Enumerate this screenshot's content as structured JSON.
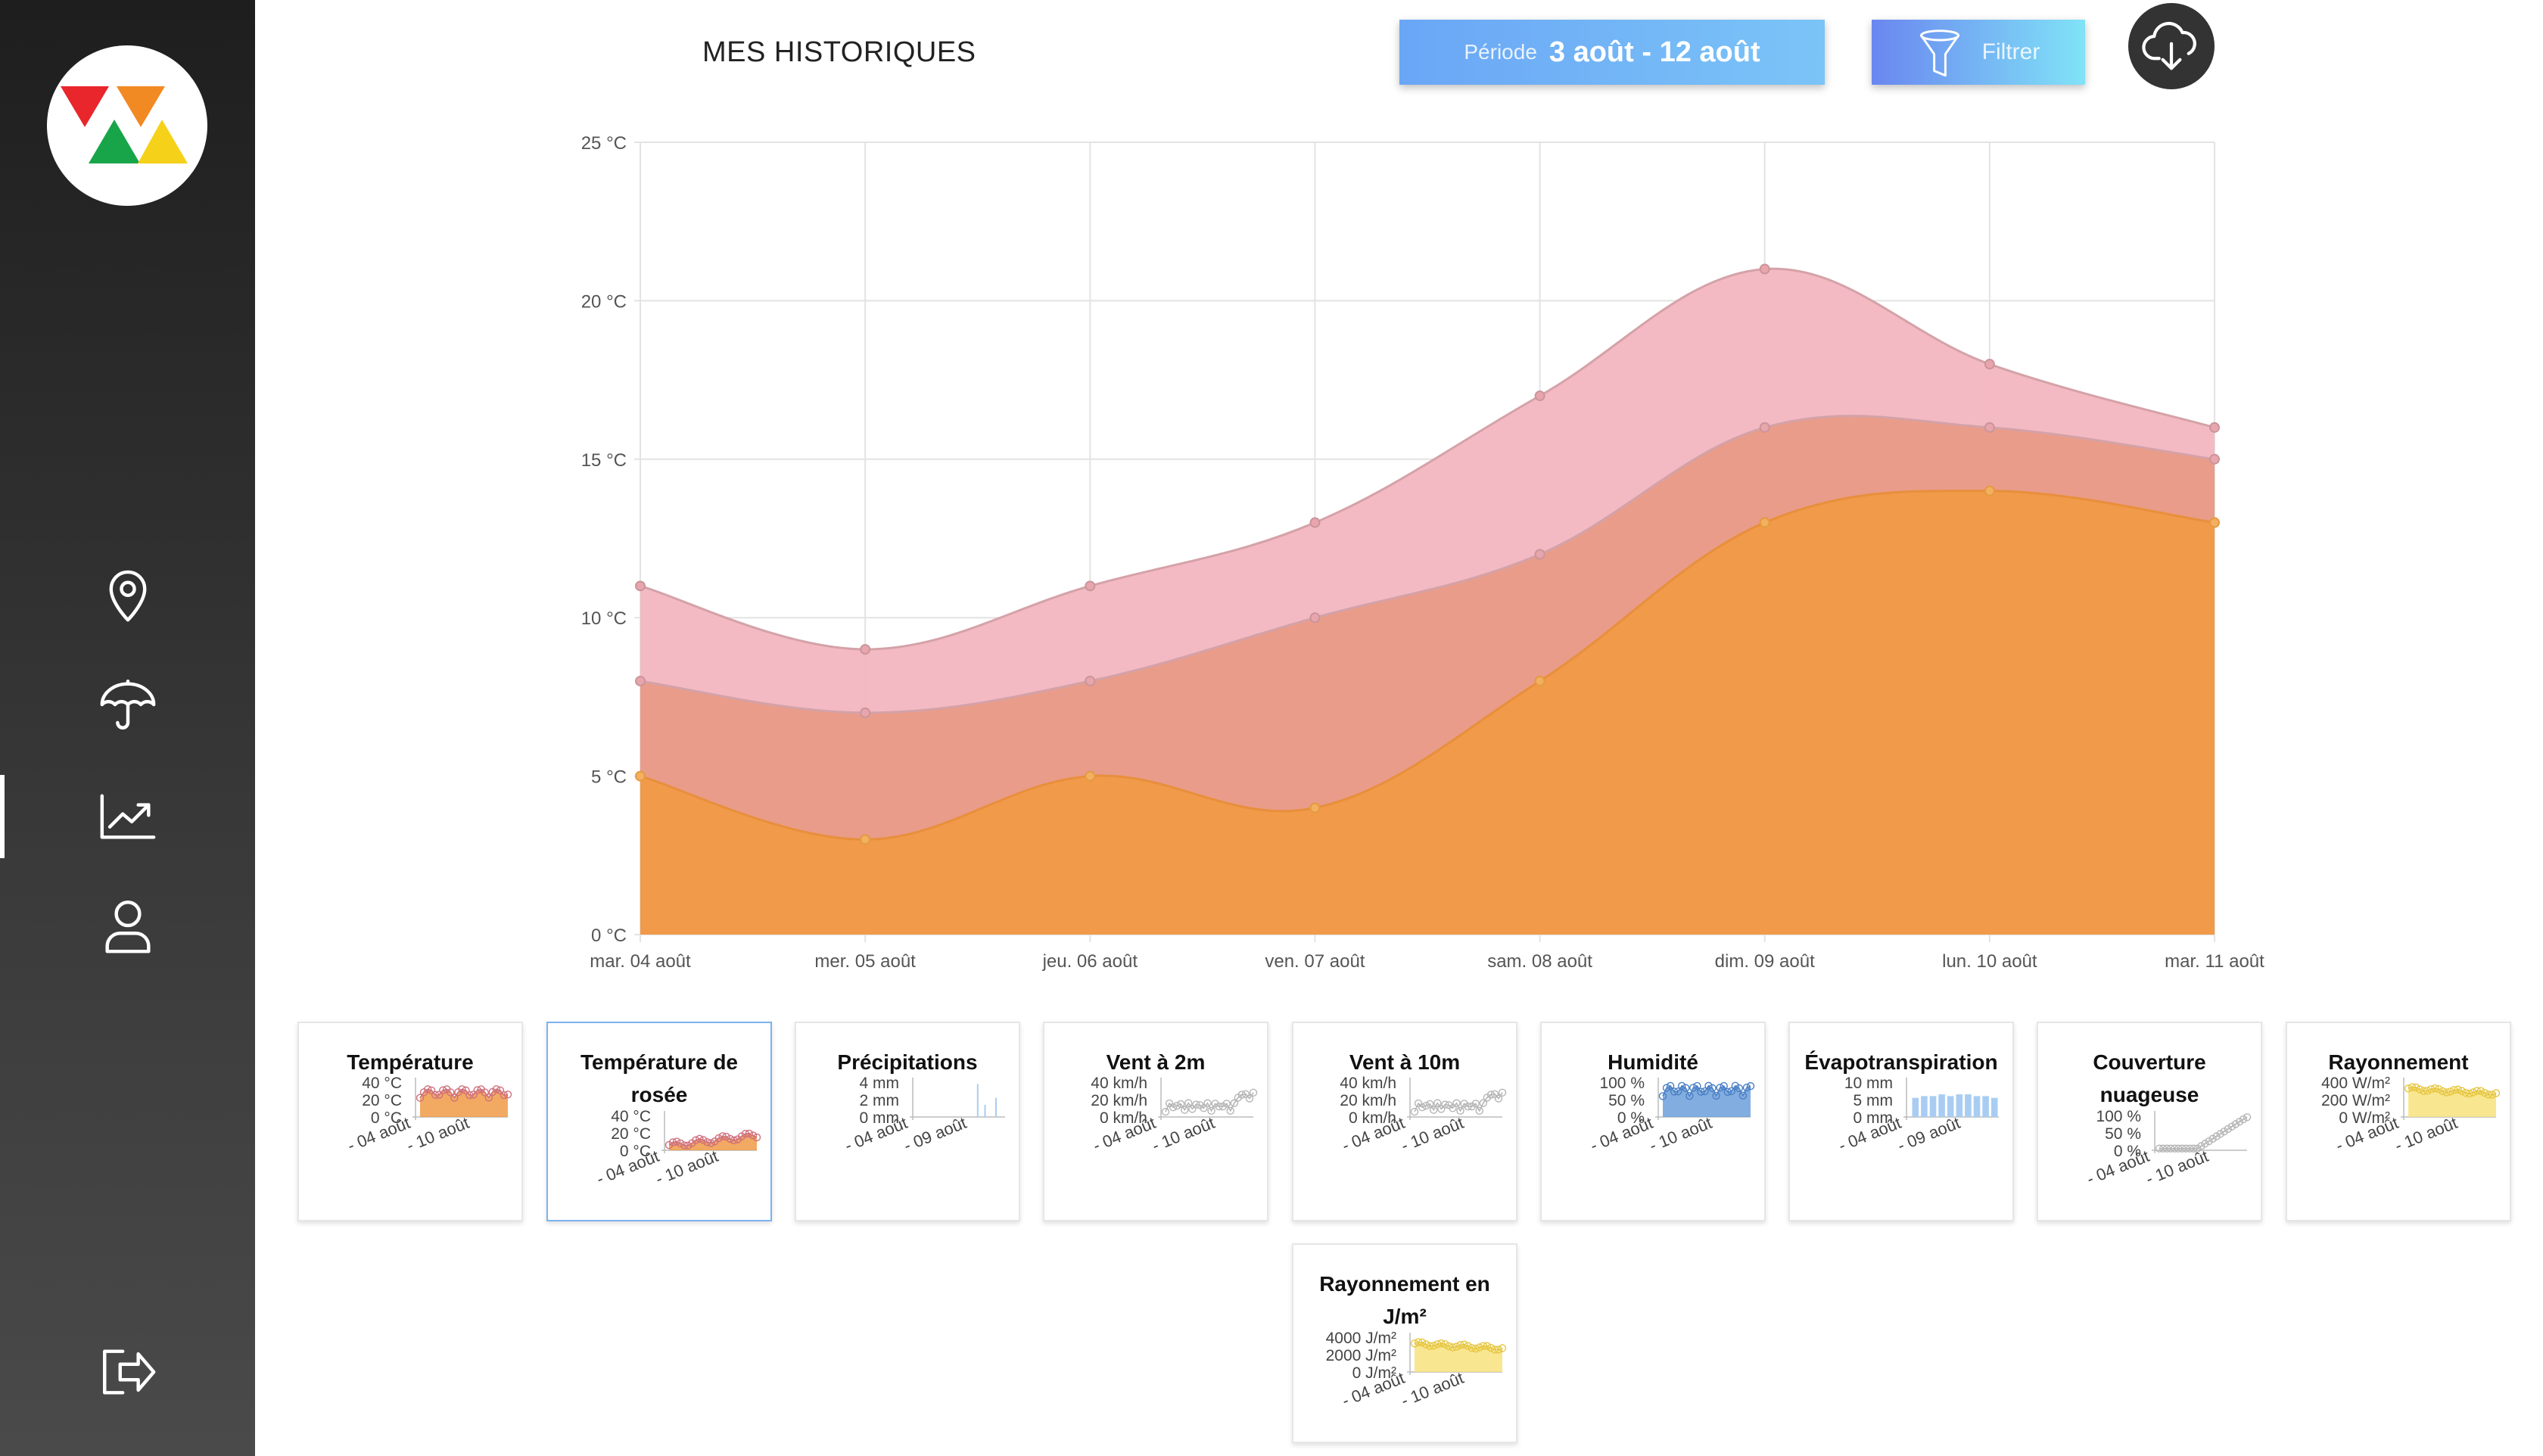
{
  "app": {
    "logo_name": "brand-logo"
  },
  "sidebar": {
    "items": [
      {
        "name": "location",
        "icon": "map-pin-icon"
      },
      {
        "name": "weather",
        "icon": "umbrella-icon"
      },
      {
        "name": "history",
        "icon": "trending-up-icon",
        "active": true
      },
      {
        "name": "profile",
        "icon": "user-icon"
      }
    ],
    "logout_icon": "logout-icon"
  },
  "header": {
    "title": "MES HISTORIQUES",
    "period_label": "Période",
    "period_value": "3 août - 12 août",
    "filter_label": "Filtrer",
    "download_icon": "cloud-download-icon"
  },
  "chart_data": {
    "type": "area",
    "title": "",
    "xlabel": "",
    "ylabel": "",
    "x": [
      "mar. 04 août",
      "mer. 05 août",
      "jeu. 06 août",
      "ven. 07 août",
      "sam. 08 août",
      "dim. 09 août",
      "lun. 10 août",
      "mar. 11 août"
    ],
    "yticks": [
      "0 °C",
      "5 °C",
      "10 °C",
      "15 °C",
      "20 °C",
      "25 °C"
    ],
    "ylim": [
      0,
      25
    ],
    "grid": true,
    "series": [
      {
        "values": [
          11,
          9,
          11,
          13,
          17,
          21,
          18,
          16
        ],
        "color": "#f3b6c0"
      },
      {
        "values": [
          8,
          7,
          8,
          10,
          12,
          16,
          16,
          15
        ],
        "color": "#e89a86"
      },
      {
        "values": [
          5,
          3,
          5,
          4,
          8,
          13,
          14,
          13
        ],
        "color": "#f09a47"
      }
    ]
  },
  "cards": [
    {
      "title_lines": [
        "Température"
      ],
      "ticks": [
        "40 °C",
        "20 °C",
        "0 °C"
      ],
      "xticks": [
        "04 août",
        "10 août"
      ],
      "kind": "temp",
      "color": "#f09a47"
    },
    {
      "title_lines": [
        "Température de",
        "rosée"
      ],
      "ticks": [
        "40 °C",
        "20 °C",
        "0 °C"
      ],
      "xticks": [
        "04 août",
        "10 août"
      ],
      "kind": "dew",
      "color": "#f09a47",
      "selected": true
    },
    {
      "title_lines": [
        "Précipitations"
      ],
      "ticks": [
        "4 mm",
        "2 mm",
        "0 mm"
      ],
      "xticks": [
        "04 août",
        "09 août"
      ],
      "kind": "bars-sparse",
      "color": "#a9cdf2"
    },
    {
      "title_lines": [
        "Vent à 2m"
      ],
      "ticks": [
        "40 km/h",
        "20 km/h",
        "0 km/h"
      ],
      "xticks": [
        "04 août",
        "10 août"
      ],
      "kind": "wind",
      "color": "#cfcfcf"
    },
    {
      "title_lines": [
        "Vent à 10m"
      ],
      "ticks": [
        "40 km/h",
        "20 km/h",
        "0 km/h"
      ],
      "xticks": [
        "04 août",
        "10 août"
      ],
      "kind": "wind",
      "color": "#cfcfcf"
    },
    {
      "title_lines": [
        "Humidité"
      ],
      "ticks": [
        "100 %",
        "50 %",
        "0 %"
      ],
      "xticks": [
        "04 août",
        "10 août"
      ],
      "kind": "humidity",
      "color": "#6c9fda"
    },
    {
      "title_lines": [
        "Évapotranspiration"
      ],
      "ticks": [
        "10 mm",
        "5 mm",
        "0 mm"
      ],
      "xticks": [
        "04 août",
        "09 août"
      ],
      "kind": "bars-full",
      "color": "#a9cdf2"
    },
    {
      "title_lines": [
        "Couverture",
        "nuageuse"
      ],
      "ticks": [
        "100 %",
        "50 %",
        "0 %"
      ],
      "xticks": [
        "04 août",
        "10 août"
      ],
      "kind": "cloud",
      "color": "#cfcfcf"
    },
    {
      "title_lines": [
        "Rayonnement"
      ],
      "ticks": [
        "400 W/m²",
        "200 W/m²",
        "0 W/m²"
      ],
      "xticks": [
        "04 août",
        "10 août"
      ],
      "kind": "radiation",
      "color": "#f7e27e"
    },
    {
      "title_lines": [
        "Rayonnement en",
        "J/m²"
      ],
      "ticks": [
        "4000 J/m²",
        "2000 J/m²",
        "0 J/m²"
      ],
      "xticks": [
        "04 août",
        "10 août"
      ],
      "kind": "radiation",
      "color": "#f7e27e"
    }
  ]
}
